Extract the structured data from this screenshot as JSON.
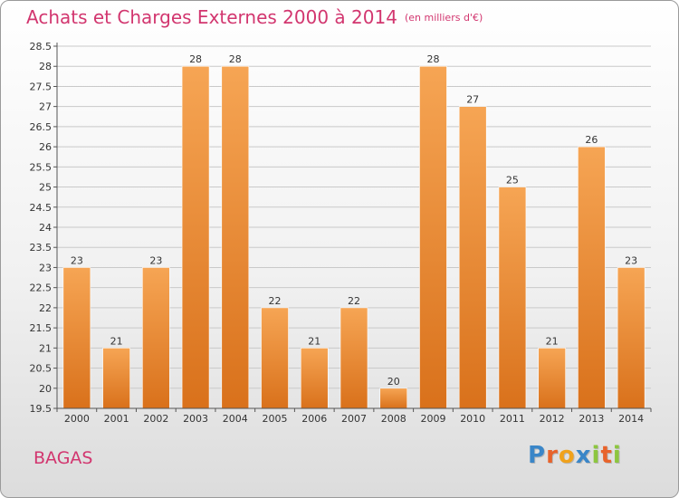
{
  "title": "Achats et Charges Externes 2000 à 2014",
  "subtitle": "(en milliers d'€)",
  "commune": "BAGAS",
  "logo": {
    "letters": [
      "P",
      "r",
      "o",
      "x",
      "i",
      "t",
      "i"
    ],
    "colors": [
      "#3a86c8",
      "#e8632b",
      "#f0a21c",
      "#3a86c8",
      "#8dc63f",
      "#e8632b",
      "#8dc63f"
    ]
  },
  "colors": {
    "bar_light": "#f6a554",
    "bar_dark": "#d9711b",
    "title": "#d2366f"
  },
  "chart_data": {
    "type": "bar",
    "categories": [
      "2000",
      "2001",
      "2002",
      "2003",
      "2004",
      "2005",
      "2006",
      "2007",
      "2008",
      "2009",
      "2010",
      "2011",
      "2012",
      "2013",
      "2014"
    ],
    "values": [
      23,
      21,
      23,
      28,
      28,
      22,
      21,
      22,
      20,
      28,
      27,
      25,
      21,
      26,
      23
    ],
    "data_labels": [
      "23",
      "21",
      "23",
      "28",
      "28",
      "22",
      "21",
      "22",
      "20",
      "28",
      "27",
      "25",
      "21",
      "26",
      "23"
    ],
    "yticks": [
      "19.5",
      "20",
      "20.5",
      "21",
      "21.5",
      "22",
      "22.5",
      "23",
      "23.5",
      "24",
      "24.5",
      "25",
      "25.5",
      "26",
      "26.5",
      "27",
      "27.5",
      "28",
      "28.5"
    ],
    "ylim": [
      19.5,
      28.5
    ],
    "grid": true
  }
}
